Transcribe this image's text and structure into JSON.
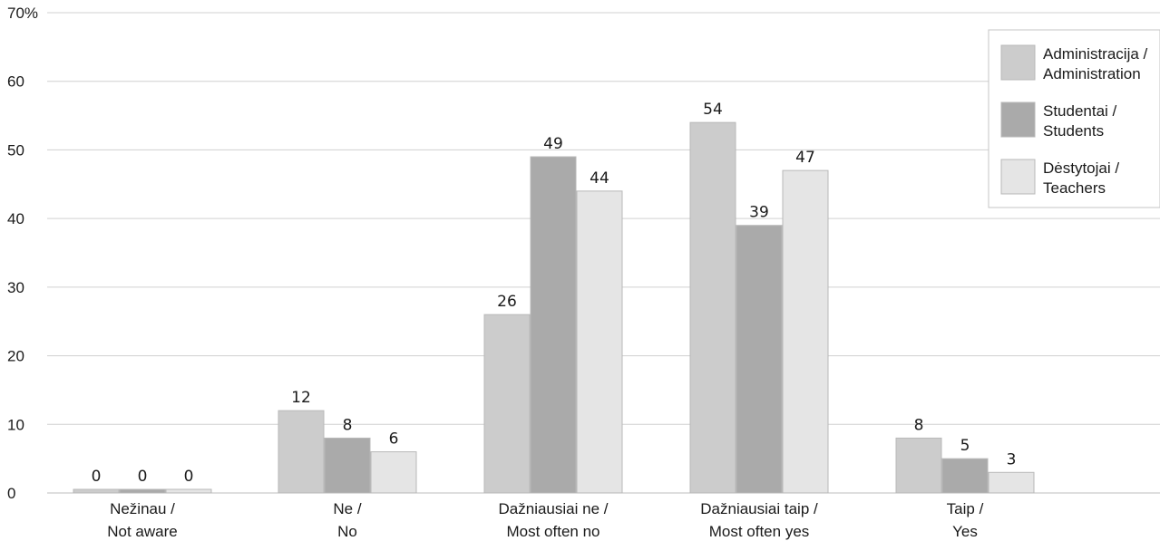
{
  "chart_data": {
    "type": "bar",
    "categories": [
      [
        "Nežinau /",
        "Not aware"
      ],
      [
        "Ne /",
        "No"
      ],
      [
        "Dažniausiai ne /",
        "Most often no"
      ],
      [
        "Dažniausiai taip /",
        "Most often yes"
      ],
      [
        "Taip /",
        "Yes"
      ]
    ],
    "series": [
      {
        "name": [
          "Administracija /",
          "Administration"
        ],
        "color": "#cccccc",
        "values": [
          0,
          12,
          26,
          54,
          8
        ]
      },
      {
        "name": [
          "Studentai /",
          "Students"
        ],
        "color": "#aaaaaa",
        "values": [
          0,
          8,
          49,
          39,
          5
        ]
      },
      {
        "name": [
          "Dėstytojai /",
          "Teachers"
        ],
        "color": "#e5e5e5",
        "values": [
          0,
          6,
          44,
          47,
          3
        ]
      }
    ],
    "yticks": [
      "0",
      "10",
      "20",
      "30",
      "40",
      "50",
      "60",
      "70%"
    ],
    "ylim": [
      0,
      70
    ],
    "grid": true,
    "legend": "top-right"
  }
}
